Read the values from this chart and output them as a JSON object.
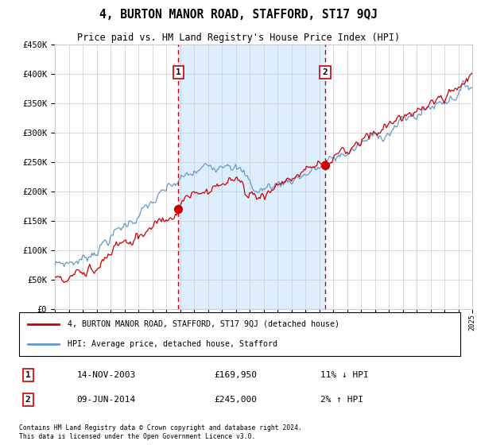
{
  "title": "4, BURTON MANOR ROAD, STAFFORD, ST17 9QJ",
  "subtitle": "Price paid vs. HM Land Registry's House Price Index (HPI)",
  "x_start_year": 1995,
  "x_end_year": 2025,
  "y_min": 0,
  "y_max": 450000,
  "y_ticks": [
    0,
    50000,
    100000,
    150000,
    200000,
    250000,
    300000,
    350000,
    400000,
    450000
  ],
  "y_tick_labels": [
    "£0",
    "£50K",
    "£100K",
    "£150K",
    "£200K",
    "£250K",
    "£300K",
    "£350K",
    "£400K",
    "£450K"
  ],
  "sale1_year": 2003.87,
  "sale1_price": 169950,
  "sale1_label": "1",
  "sale1_date": "14-NOV-2003",
  "sale1_price_str": "£169,950",
  "sale1_hpi_diff": "11% ↓ HPI",
  "sale2_year": 2014.44,
  "sale2_price": 245000,
  "sale2_label": "2",
  "sale2_date": "09-JUN-2014",
  "sale2_price_str": "£245,000",
  "sale2_hpi_diff": "2% ↑ HPI",
  "hpi_color": "#6699cc",
  "sale_color": "#cc0000",
  "highlight_color": "#ddeeff",
  "dashed_line_color": "#cc0000",
  "grid_color": "#cccccc",
  "background_color": "#ffffff",
  "legend_line1": "4, BURTON MANOR ROAD, STAFFORD, ST17 9QJ (detached house)",
  "legend_line2": "HPI: Average price, detached house, Stafford",
  "footer": "Contains HM Land Registry data © Crown copyright and database right 2024.\nThis data is licensed under the Open Government Licence v3.0."
}
